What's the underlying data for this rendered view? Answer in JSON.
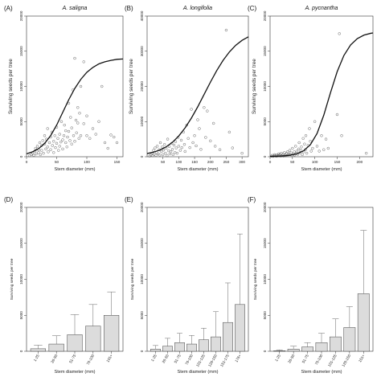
{
  "chart_data": [
    {
      "type": "scatter",
      "panel": "(A)",
      "title": "A. saligna",
      "xlabel": "Stem diameter (mm)",
      "ylabel": "Surviving seeds per tree",
      "xlim": [
        0,
        160
      ],
      "ylim": [
        0,
        20000
      ],
      "xticks": [
        0,
        50,
        100,
        150
      ],
      "yticks": [
        0,
        5000,
        10000,
        15000,
        20000
      ],
      "curve": {
        "x": [
          0,
          10,
          20,
          30,
          40,
          50,
          60,
          70,
          80,
          90,
          100,
          110,
          120,
          130,
          140,
          150,
          160
        ],
        "y": [
          420,
          700,
          1150,
          1900,
          3000,
          4500,
          6300,
          8100,
          9700,
          11000,
          12000,
          12700,
          13200,
          13500,
          13700,
          13850,
          13900
        ]
      },
      "points": [
        [
          5,
          150
        ],
        [
          8,
          300
        ],
        [
          10,
          500
        ],
        [
          12,
          200
        ],
        [
          14,
          800
        ],
        [
          15,
          1200
        ],
        [
          16,
          400
        ],
        [
          18,
          1500
        ],
        [
          20,
          600
        ],
        [
          20,
          1000
        ],
        [
          22,
          2000
        ],
        [
          23,
          300
        ],
        [
          25,
          1600
        ],
        [
          25,
          900
        ],
        [
          27,
          2300
        ],
        [
          28,
          500
        ],
        [
          30,
          1800
        ],
        [
          30,
          3000
        ],
        [
          32,
          1100
        ],
        [
          33,
          2500
        ],
        [
          35,
          1400
        ],
        [
          35,
          4000
        ],
        [
          36,
          700
        ],
        [
          38,
          2000
        ],
        [
          40,
          1000
        ],
        [
          40,
          2800
        ],
        [
          42,
          3500
        ],
        [
          43,
          1600
        ],
        [
          45,
          2200
        ],
        [
          45,
          600
        ],
        [
          47,
          3000
        ],
        [
          48,
          1300
        ],
        [
          50,
          1900
        ],
        [
          50,
          4200
        ],
        [
          52,
          2600
        ],
        [
          53,
          900
        ],
        [
          55,
          3200
        ],
        [
          55,
          1500
        ],
        [
          57,
          2100
        ],
        [
          58,
          5000
        ],
        [
          60,
          2400
        ],
        [
          60,
          1100
        ],
        [
          62,
          3000
        ],
        [
          63,
          4500
        ],
        [
          65,
          2000
        ],
        [
          65,
          3700
        ],
        [
          67,
          1400
        ],
        [
          68,
          2800
        ],
        [
          70,
          7600
        ],
        [
          70,
          3600
        ],
        [
          72,
          2300
        ],
        [
          73,
          5600
        ],
        [
          75,
          4100
        ],
        [
          75,
          1800
        ],
        [
          77,
          9500
        ],
        [
          78,
          3000
        ],
        [
          80,
          14000
        ],
        [
          80,
          2200
        ],
        [
          82,
          5200
        ],
        [
          83,
          3400
        ],
        [
          85,
          7000
        ],
        [
          85,
          4800
        ],
        [
          87,
          2600
        ],
        [
          88,
          6200
        ],
        [
          90,
          10000
        ],
        [
          90,
          3000
        ],
        [
          95,
          13500
        ],
        [
          95,
          4700
        ],
        [
          100,
          3000
        ],
        [
          100,
          5800
        ],
        [
          105,
          2600
        ],
        [
          110,
          4000
        ],
        [
          115,
          3200
        ],
        [
          120,
          5000
        ],
        [
          125,
          10000
        ],
        [
          130,
          2000
        ],
        [
          135,
          1200
        ],
        [
          140,
          3100
        ],
        [
          145,
          2800
        ],
        [
          150,
          2000
        ]
      ]
    },
    {
      "type": "scatter",
      "panel": "(B)",
      "title": "A. longifolia",
      "xlabel": "Stem diameter (mm)",
      "ylabel": "Surviving seeds per tree",
      "xlim": [
        0,
        320
      ],
      "ylim": [
        0,
        40000
      ],
      "xticks": [
        50,
        100,
        150,
        200,
        250,
        300
      ],
      "yticks": [
        0,
        10000,
        20000,
        30000,
        40000
      ],
      "curve": {
        "x": [
          0,
          20,
          40,
          60,
          80,
          100,
          120,
          140,
          160,
          180,
          200,
          220,
          240,
          260,
          280,
          300,
          320
        ],
        "y": [
          900,
          1300,
          1900,
          2800,
          4100,
          5900,
          8200,
          11000,
          14200,
          17700,
          21200,
          24500,
          27400,
          29800,
          31700,
          33100,
          34100
        ]
      },
      "points": [
        [
          8,
          200
        ],
        [
          12,
          500
        ],
        [
          15,
          1000
        ],
        [
          18,
          300
        ],
        [
          20,
          1800
        ],
        [
          22,
          700
        ],
        [
          25,
          2500
        ],
        [
          28,
          400
        ],
        [
          30,
          1200
        ],
        [
          32,
          3000
        ],
        [
          35,
          800
        ],
        [
          38,
          2000
        ],
        [
          40,
          500
        ],
        [
          42,
          4000
        ],
        [
          45,
          1500
        ],
        [
          48,
          2800
        ],
        [
          50,
          600
        ],
        [
          52,
          1900
        ],
        [
          55,
          3500
        ],
        [
          58,
          1000
        ],
        [
          60,
          2400
        ],
        [
          63,
          300
        ],
        [
          65,
          5000
        ],
        [
          68,
          1700
        ],
        [
          70,
          2900
        ],
        [
          72,
          800
        ],
        [
          75,
          1400
        ],
        [
          78,
          3800
        ],
        [
          80,
          2100
        ],
        [
          82,
          600
        ],
        [
          85,
          3300
        ],
        [
          88,
          1200
        ],
        [
          90,
          4300
        ],
        [
          92,
          2500
        ],
        [
          95,
          1000
        ],
        [
          98,
          5500
        ],
        [
          100,
          3000
        ],
        [
          105,
          1800
        ],
        [
          108,
          4700
        ],
        [
          110,
          2600
        ],
        [
          115,
          7000
        ],
        [
          118,
          3500
        ],
        [
          120,
          1500
        ],
        [
          125,
          9000
        ],
        [
          130,
          5200
        ],
        [
          135,
          2600
        ],
        [
          140,
          13500
        ],
        [
          145,
          4000
        ],
        [
          150,
          6000
        ],
        [
          155,
          3100
        ],
        [
          160,
          10500
        ],
        [
          165,
          8000
        ],
        [
          170,
          2100
        ],
        [
          180,
          14000
        ],
        [
          185,
          5500
        ],
        [
          190,
          13000
        ],
        [
          200,
          4500
        ],
        [
          210,
          9500
        ],
        [
          215,
          3000
        ],
        [
          230,
          2000
        ],
        [
          250,
          36000
        ],
        [
          260,
          7000
        ],
        [
          270,
          2500
        ],
        [
          300,
          1000
        ]
      ]
    },
    {
      "type": "scatter",
      "panel": "(C)",
      "title": "A. pycnantha",
      "xlabel": "Stem diameter (mm)",
      "ylabel": "Surviving seeds per tree",
      "xlim": [
        0,
        230
      ],
      "ylim": [
        0,
        20000
      ],
      "xticks": [
        0,
        50,
        100,
        150,
        200
      ],
      "yticks": [
        0,
        5000,
        10000,
        15000,
        20000
      ],
      "curve": {
        "x": [
          0,
          15,
          30,
          45,
          60,
          75,
          90,
          105,
          120,
          135,
          150,
          165,
          180,
          195,
          210,
          225,
          230
        ],
        "y": [
          50,
          70,
          120,
          220,
          420,
          850,
          1700,
          3300,
          5900,
          9100,
          12100,
          14400,
          15900,
          16800,
          17300,
          17550,
          17600
        ]
      },
      "points": [
        [
          3,
          80
        ],
        [
          5,
          200
        ],
        [
          7,
          50
        ],
        [
          9,
          150
        ],
        [
          10,
          300
        ],
        [
          12,
          100
        ],
        [
          14,
          250
        ],
        [
          15,
          60
        ],
        [
          17,
          180
        ],
        [
          19,
          400
        ],
        [
          20,
          120
        ],
        [
          22,
          300
        ],
        [
          24,
          90
        ],
        [
          25,
          500
        ],
        [
          27,
          200
        ],
        [
          29,
          350
        ],
        [
          30,
          100
        ],
        [
          32,
          600
        ],
        [
          34,
          250
        ],
        [
          35,
          150
        ],
        [
          37,
          450
        ],
        [
          39,
          700
        ],
        [
          40,
          200
        ],
        [
          42,
          350
        ],
        [
          44,
          900
        ],
        [
          45,
          300
        ],
        [
          47,
          550
        ],
        [
          49,
          150
        ],
        [
          50,
          1200
        ],
        [
          52,
          400
        ],
        [
          54,
          700
        ],
        [
          55,
          250
        ],
        [
          57,
          1500
        ],
        [
          59,
          500
        ],
        [
          60,
          800
        ],
        [
          62,
          350
        ],
        [
          64,
          1100
        ],
        [
          65,
          2000
        ],
        [
          67,
          600
        ],
        [
          69,
          900
        ],
        [
          70,
          1400
        ],
        [
          72,
          300
        ],
        [
          74,
          2600
        ],
        [
          75,
          700
        ],
        [
          77,
          1800
        ],
        [
          79,
          1000
        ],
        [
          80,
          3000
        ],
        [
          82,
          500
        ],
        [
          85,
          1600
        ],
        [
          88,
          4000
        ],
        [
          90,
          2200
        ],
        [
          92,
          800
        ],
        [
          95,
          1200
        ],
        [
          100,
          5000
        ],
        [
          105,
          1500
        ],
        [
          110,
          800
        ],
        [
          115,
          3000
        ],
        [
          120,
          1000
        ],
        [
          125,
          2500
        ],
        [
          130,
          1200
        ],
        [
          150,
          6000
        ],
        [
          155,
          17500
        ],
        [
          160,
          3000
        ],
        [
          215,
          500
        ]
      ]
    },
    {
      "type": "bar",
      "panel": "(D)",
      "xlabel": "Stem diameter (mm)",
      "ylabel": "Surviving seeds per tree",
      "ylim": [
        0,
        20000
      ],
      "yticks": [
        0,
        5000,
        10000,
        15000,
        20000
      ],
      "categories": [
        "1-25",
        "26-50",
        "51-75",
        "76-100",
        "101+"
      ],
      "values": [
        350,
        1000,
        2300,
        3500,
        5000
      ],
      "error_upper": [
        850,
        2150,
        5100,
        6500,
        8250
      ]
    },
    {
      "type": "bar",
      "panel": "(E)",
      "xlabel": "Stem diameter (mm)",
      "ylabel": "Surviving seeds per tree",
      "ylim": [
        0,
        20000
      ],
      "yticks": [
        0,
        5000,
        10000,
        15000,
        20000
      ],
      "categories": [
        "1-25",
        "26-50",
        "51-75",
        "76-100",
        "101-125",
        "126-150",
        "151-175",
        "176+"
      ],
      "values": [
        300,
        700,
        1200,
        1000,
        1600,
        2000,
        4000,
        6500
      ],
      "error_upper": [
        800,
        1800,
        2500,
        2200,
        3200,
        5500,
        9500,
        16300
      ]
    },
    {
      "type": "bar",
      "panel": "(F)",
      "xlabel": "Stem diameter (mm)",
      "ylabel": "Surviving seeds per tree",
      "ylim": [
        0,
        20000
      ],
      "yticks": [
        0,
        5000,
        10000,
        15000,
        20000
      ],
      "categories": [
        "1-25",
        "26-50",
        "51-75",
        "76-100",
        "101-125",
        "126-150",
        "151+"
      ],
      "values": [
        80,
        300,
        600,
        1200,
        2000,
        3300,
        8000
      ],
      "error_upper": [
        200,
        700,
        1200,
        2500,
        4500,
        6200,
        16800
      ]
    }
  ]
}
